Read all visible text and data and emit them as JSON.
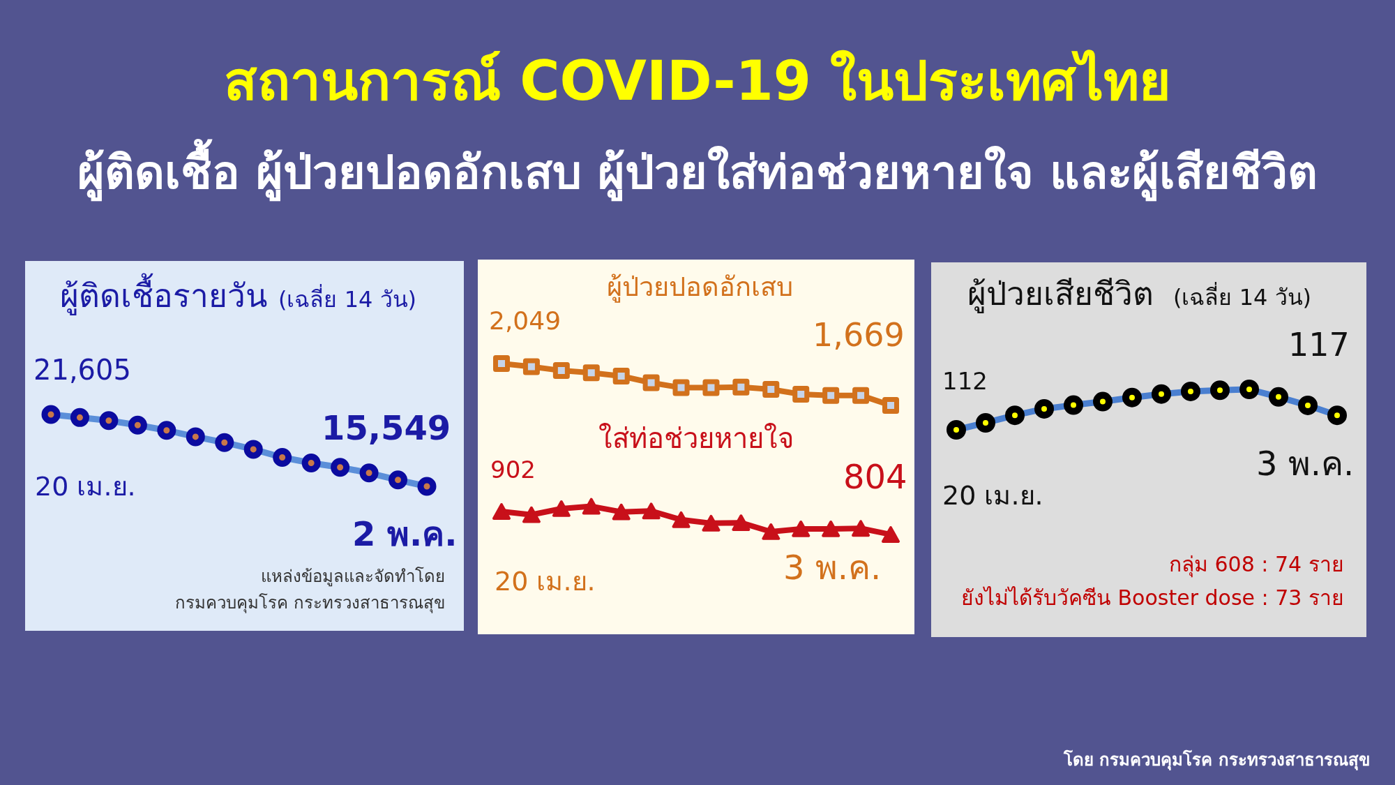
{
  "chart_data": [
    {
      "type": "other",
      "title": "สถานการณ์ COVID-19 ในประเทศไทย",
      "subtitle": "ผู้ติดเชื้อ ผู้ป่วยปอดอักเสบ ผู้ป่วยใส่ท่อช่วยหายใจ และผู้เสียชีวิต",
      "annotations": [
        "โดย กรมควบคุมโรค กระทรวงสาธารณสุข"
      ]
    },
    {
      "type": "line",
      "title": "ผู้ติดเชื้อรายวัน",
      "subtitle": "(เฉลี่ย 14 วัน)",
      "categories": [
        null,
        null,
        null,
        null,
        null,
        null,
        null,
        null,
        null,
        null,
        null,
        null,
        null,
        null
      ],
      "series": [
        {
          "color": "#5b8fd9",
          "values": [
            21605,
            21350,
            21090,
            20710,
            20270,
            19730,
            19240,
            18670,
            17990,
            17520,
            17150,
            16680,
            16090,
            15549
          ],
          "value_labels": [
            "21,605",
            null,
            null,
            null,
            null,
            null,
            null,
            null,
            null,
            null,
            null,
            null,
            null,
            "15,549"
          ]
        }
      ],
      "marker": "circle",
      "annotations": [
        "20 เม.ย.",
        "2 พ.ค.",
        "แหล่งข้อมูลและจัดทำโดย",
        "กรมควบคุมโรค กระทรวงสาธารณสุข"
      ]
    },
    {
      "type": "line",
      "categories": [
        null,
        null,
        null,
        null,
        null,
        null,
        null,
        null,
        null,
        null,
        null,
        null,
        null,
        null
      ],
      "series": [
        {
          "name": "ผู้ป่วยปอดอักเสบ",
          "color": "#d2711c",
          "values": [
            2049,
            2020,
            1985,
            1965,
            1935,
            1875,
            1830,
            1830,
            1835,
            1815,
            1770,
            1760,
            1760,
            1669
          ],
          "value_labels": [
            "2,049",
            null,
            null,
            null,
            null,
            null,
            null,
            null,
            null,
            null,
            null,
            null,
            null,
            "1,669"
          ]
        }
      ],
      "marker": "square"
    },
    {
      "type": "line",
      "categories": [
        null,
        null,
        null,
        null,
        null,
        null,
        null,
        null,
        null,
        null,
        null,
        null,
        null,
        null
      ],
      "series": [
        {
          "name": "ใส่ท่อช่วยหายใจ",
          "color": "#c8101a",
          "values": [
            902,
            888,
            914,
            924,
            900,
            904,
            867,
            852,
            854,
            816,
            828,
            828,
            830,
            804
          ],
          "value_labels": [
            "902",
            null,
            null,
            null,
            null,
            null,
            null,
            null,
            null,
            null,
            null,
            null,
            null,
            "804"
          ]
        }
      ],
      "marker": "triangle",
      "annotations": [
        "20 เม.ย.",
        "3 พ.ค."
      ]
    },
    {
      "type": "line",
      "title": "ผู้ป่วยเสียชีวิต",
      "subtitle": "(เฉลี่ย 14 วัน)",
      "categories": [
        null,
        null,
        null,
        null,
        null,
        null,
        null,
        null,
        null,
        null,
        null,
        null,
        null,
        null
      ],
      "series": [
        {
          "color": "#4a7fd0",
          "values": [
            112,
            114.4,
            117,
            119.2,
            120.5,
            121.7,
            123.1,
            124.3,
            125.2,
            125.6,
            125.9,
            123.3,
            120.4,
            117
          ],
          "value_labels": [
            "112",
            null,
            null,
            null,
            null,
            null,
            null,
            null,
            null,
            null,
            null,
            null,
            null,
            "117"
          ]
        }
      ],
      "marker": "circle",
      "annotations": [
        "20 เม.ย.",
        "3 พ.ค.",
        "กลุ่ม 608 : 74 ราย",
        "ยังไม่ได้รับวัคซีน Booster dose : 73 ราย"
      ]
    }
  ]
}
